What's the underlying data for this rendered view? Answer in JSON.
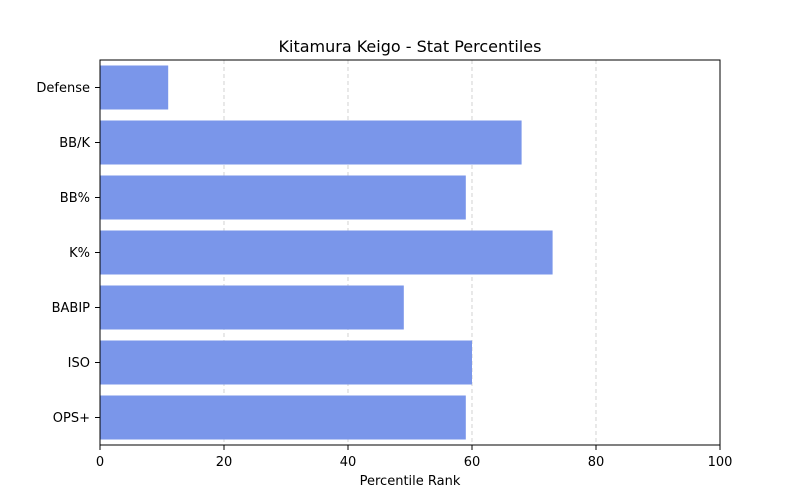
{
  "chart_data": {
    "type": "bar",
    "orientation": "horizontal",
    "title": "Kitamura Keigo - Stat Percentiles",
    "xlabel": "Percentile Rank",
    "ylabel": "",
    "categories": [
      "OPS+",
      "ISO",
      "BABIP",
      "K%",
      "BB%",
      "BB/K",
      "Defense"
    ],
    "values": [
      59,
      60,
      49,
      73,
      59,
      68,
      11
    ],
    "xlim": [
      0,
      100
    ],
    "xticks": [
      0,
      20,
      40,
      60,
      80,
      100
    ],
    "grid": "x-dashed",
    "bar_color": "#7a96ea"
  }
}
